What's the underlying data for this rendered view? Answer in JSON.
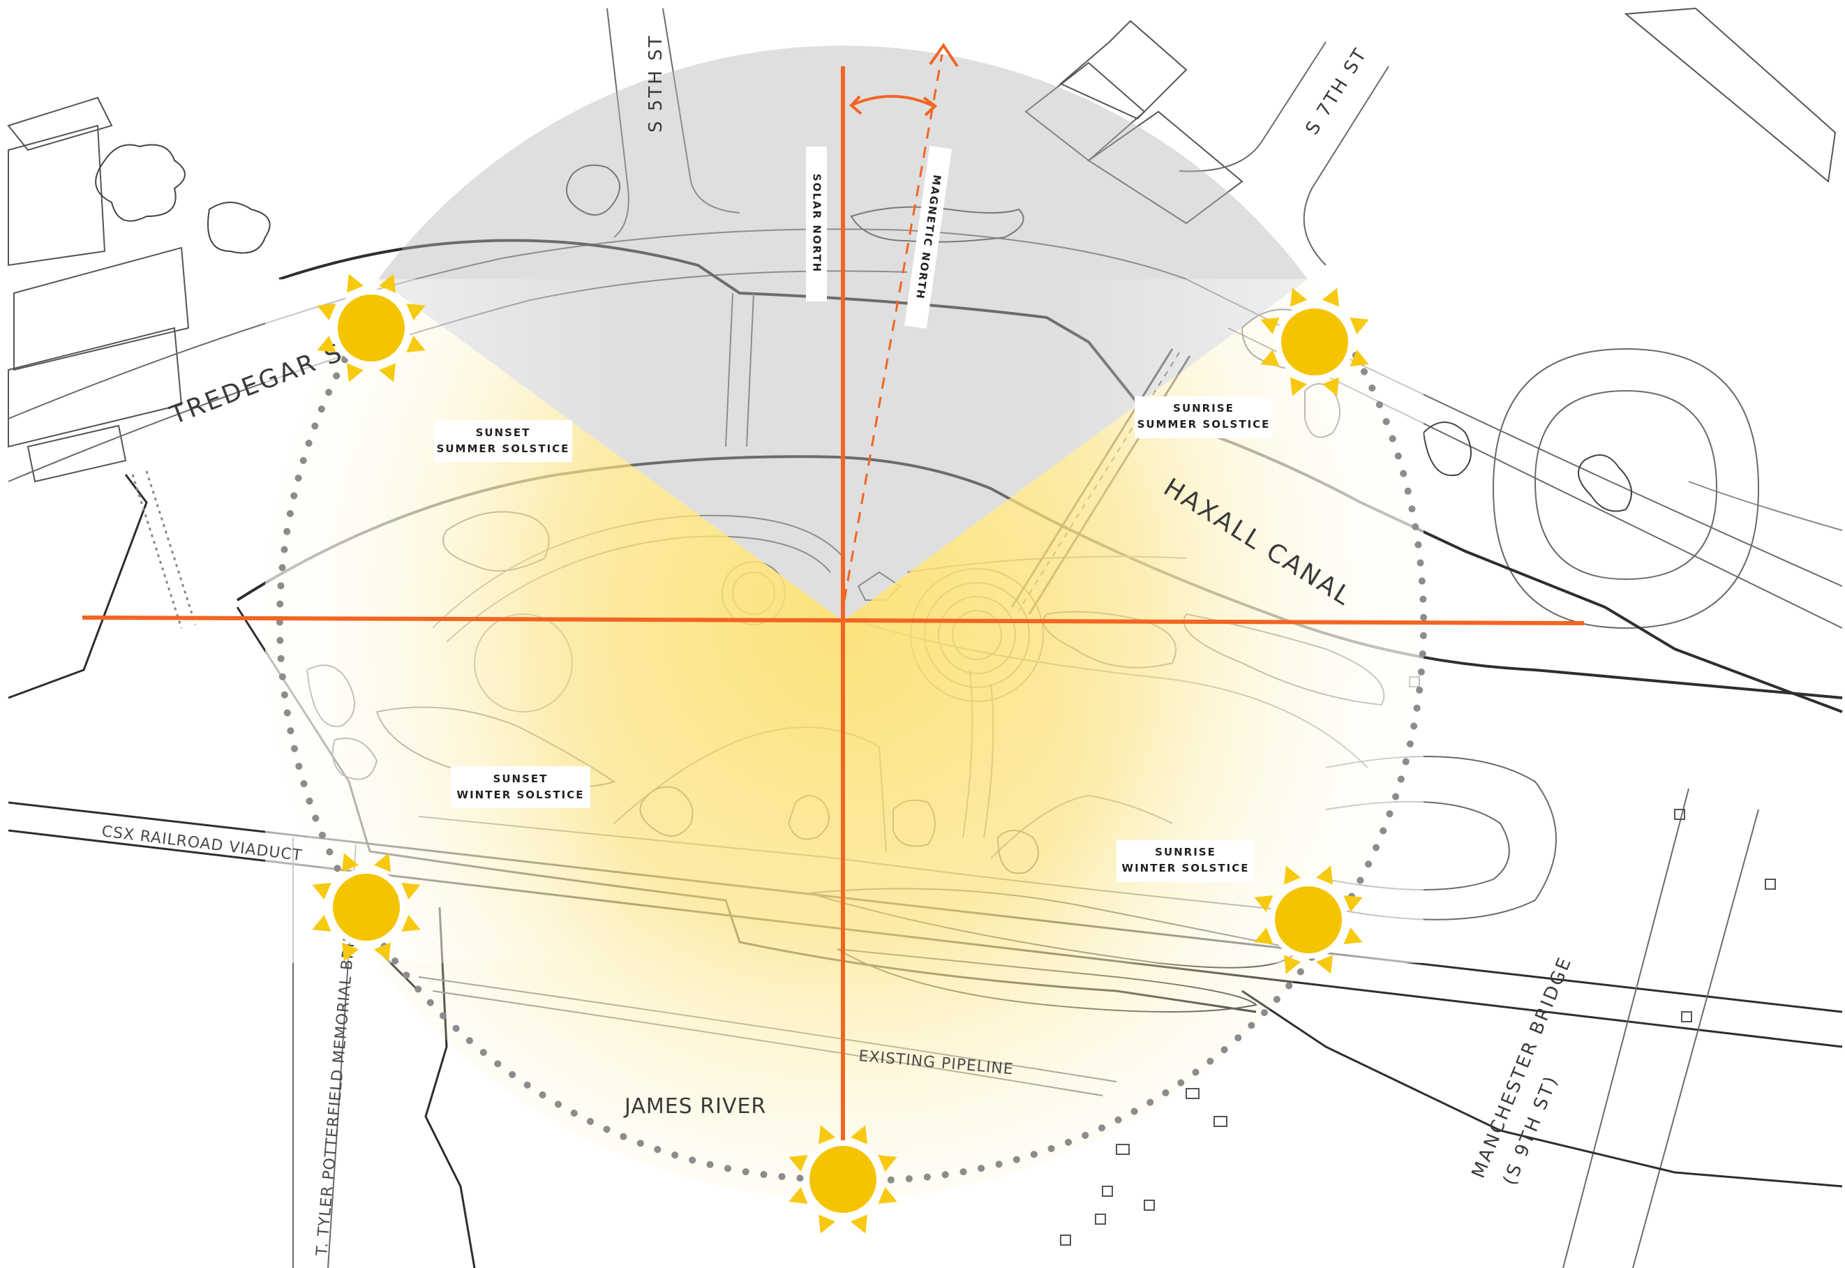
{
  "map": {
    "streets": {
      "s5th": "S 5TH ST",
      "s7th": "S 7TH ST",
      "tredegar": "TREDEGAR ST.",
      "haxall": "HAXALL CANAL",
      "csx": "CSX  RAILROAD VIADUCT",
      "potterfield": "T. TYLER POTTERFIELD MEMORIAL BRIDGE",
      "manchester_1": "MANCHESTER BRIDGE",
      "manchester_2": "(S 9TH ST)",
      "james": "JAMES RIVER",
      "pipeline": "EXISTING PIPELINE"
    },
    "north": {
      "solar": "SOLAR NORTH",
      "magnetic": "MAGNETIC NORTH"
    },
    "sun_positions": [
      {
        "line1": "SUNSET",
        "line2": "SUMMER SOLSTICE"
      },
      {
        "line1": "SUNRISE",
        "line2": "SUMMER SOLSTICE"
      },
      {
        "line1": "SUNSET",
        "line2": "WINTER SOLSTICE"
      },
      {
        "line1": "SUNRISE",
        "line2": "WINTER SOLSTICE"
      }
    ],
    "colors": {
      "axis": "#f26522",
      "sun": "#f5c400",
      "sun_ray": "#f7c910",
      "sunpath_fill": "#fbe589",
      "shadow": "#c4c4c4",
      "dots": "#8c8c8c"
    }
  }
}
